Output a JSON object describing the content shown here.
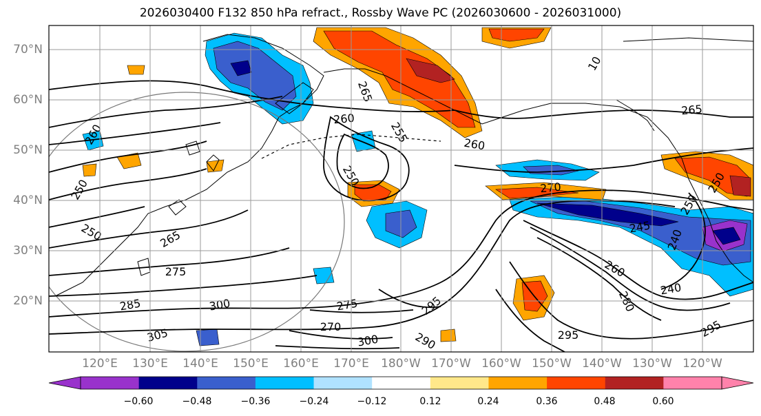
{
  "title": "2026030400 F132 850 hPa refract., Rossby Wave PC (2026030600 - 2026031000)",
  "lat_labels": [
    "70°N",
    "60°N",
    "50°N",
    "40°N",
    "30°N",
    "20°N"
  ],
  "lon_labels": [
    "120°E",
    "130°E",
    "140°E",
    "150°E",
    "160°E",
    "170°E",
    "180°W",
    "170°W",
    "160°W",
    "150°W",
    "140°W",
    "130°W",
    "120°W"
  ],
  "contour_labels": [
    "270",
    "265",
    "260",
    "255",
    "260",
    "250",
    "260",
    "265",
    "250",
    "250",
    "265",
    "275",
    "285",
    "300",
    "305",
    "275",
    "270",
    "300",
    "295",
    "290",
    "295",
    "245",
    "240",
    "280",
    "260",
    "240",
    "250",
    "295",
    "250",
    "10"
  ],
  "colorbar": {
    "ticks": [
      "−0.60",
      "−0.48",
      "−0.36",
      "−0.24",
      "−0.12",
      "0.12",
      "0.24",
      "0.36",
      "0.48",
      "0.60"
    ],
    "colors": [
      "#9932cc",
      "#00008b",
      "#3a5fcd",
      "#00bfff",
      "#b0e2ff",
      "#ffffff",
      "#ffe88a",
      "#ffa500",
      "#ff4500",
      "#b22222",
      "#ff82ab"
    ]
  },
  "palette": {
    "neg_strong": "#00008b",
    "neg_mid": "#3a5fcd",
    "neg_light": "#00bfff",
    "neg_pale": "#b0e2ff",
    "neg_extreme": "#9932cc",
    "pos_pale": "#ffe88a",
    "pos_mid": "#ffa500",
    "pos_strong": "#ff4500",
    "pos_dark": "#b22222",
    "pos_extreme": "#ff82ab",
    "grid": "#9a9a9a",
    "coast": "#000000"
  }
}
